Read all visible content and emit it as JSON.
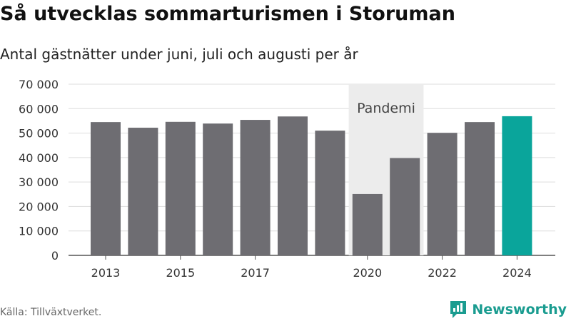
{
  "title": "Så utvecklas sommarturismen i Storuman",
  "subtitle": "Antal gästnätter under juni, juli och augusti per år",
  "source": "Källa: Tillväxtverket.",
  "brand": {
    "name": "Newsworthy",
    "icon": "newsworthy-logo-icon",
    "color": "#1a9c90"
  },
  "chart_data": {
    "type": "bar",
    "title": "Så utvecklas sommarturismen i Storuman",
    "subtitle": "Antal gästnätter under juni, juli och augusti per år",
    "categories": [
      "2013",
      "2014",
      "2015",
      "2016",
      "2017",
      "2018",
      "2019",
      "2020",
      "2021",
      "2022",
      "2023",
      "2024"
    ],
    "values": [
      54500,
      52200,
      54600,
      53900,
      55400,
      56800,
      51000,
      25100,
      39800,
      50100,
      54500,
      56900
    ],
    "xlabel": "",
    "ylabel": "",
    "ylim": [
      0,
      70000
    ],
    "yticks": [
      0,
      10000,
      20000,
      30000,
      40000,
      50000,
      60000,
      70000
    ],
    "ytick_labels": [
      "0",
      "10 000",
      "20 000",
      "30 000",
      "40 000",
      "50 000",
      "60 000",
      "70 000"
    ],
    "xtick_labels": [
      "2013",
      "2015",
      "2017",
      "2020",
      "2022",
      "2024"
    ],
    "grid": true,
    "bar_color": "#6e6d72",
    "highlight_color": "#0aa59b",
    "highlight_category": "2024",
    "annotation": {
      "label": "Pandemi",
      "start": "2020",
      "end": "2021",
      "color": "#ececec"
    }
  }
}
